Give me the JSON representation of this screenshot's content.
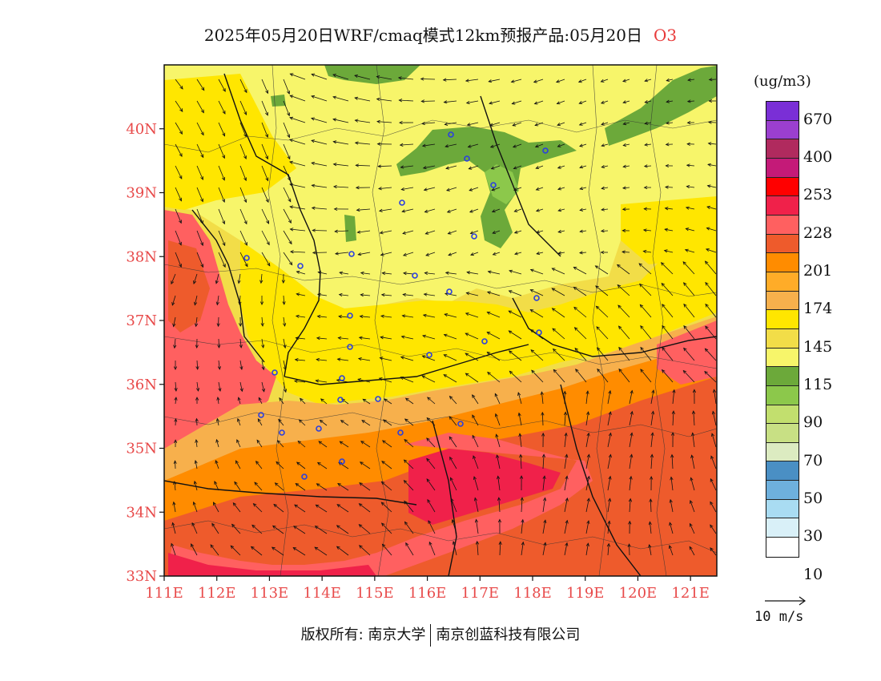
{
  "title": {
    "text": "2025年05月20日WRF/cmaq模式12km预报产品:05月20日",
    "species": "O3"
  },
  "map": {
    "lat_ticks": [
      "40N",
      "39N",
      "38N",
      "37N",
      "36N",
      "35N",
      "34N",
      "33N"
    ],
    "lon_ticks": [
      "111E",
      "112E",
      "113E",
      "114E",
      "115E",
      "116E",
      "117E",
      "118E",
      "119E",
      "120E",
      "121E"
    ],
    "lat_range": [
      33,
      41
    ],
    "lon_range": [
      111,
      121.5
    ]
  },
  "colorbar": {
    "unit": "(ug/m3)",
    "labels": [
      "670",
      "400",
      "253",
      "228",
      "201",
      "174",
      "145",
      "115",
      "90",
      "70",
      "50",
      "30",
      "10"
    ],
    "colors": [
      "#7a2fd6",
      "#9b3fcf",
      "#b02a5e",
      "#c41a78",
      "#ff0000",
      "#f0214a",
      "#ff6060",
      "#ee5b2c",
      "#ff8c00",
      "#ffac28",
      "#f7b04c",
      "#ffe600",
      "#f2dd48",
      "#f7f56a",
      "#6ca93a",
      "#8cc84b",
      "#c2df6e",
      "#c8e084",
      "#dcebc1",
      "#4a8fc4",
      "#6eb0dd",
      "#a9dcf2",
      "#d9f0f8",
      "#ffffff"
    ]
  },
  "reference_vector": {
    "label": "10 m/s"
  },
  "copyright": {
    "left": "版权所有: 南京大学",
    "right": "南京创蓝科技有限公司"
  }
}
